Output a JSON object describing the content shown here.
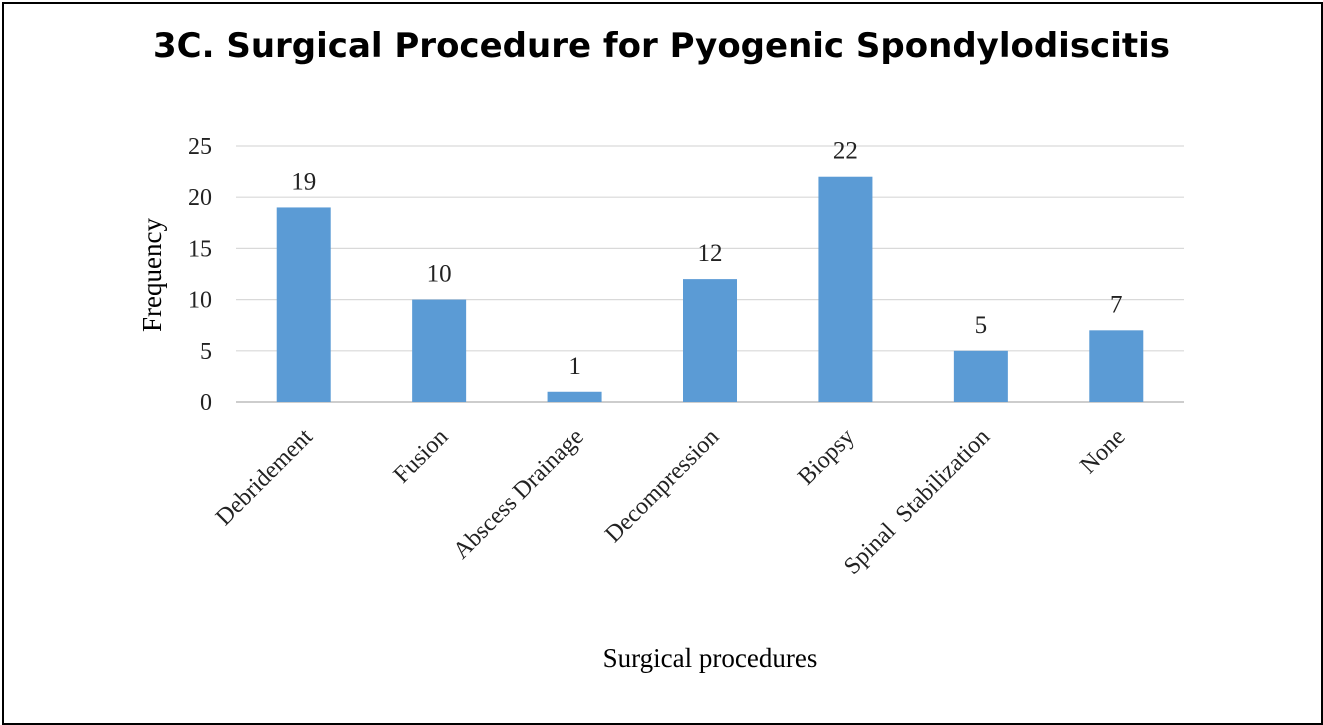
{
  "chart_data": {
    "type": "bar",
    "title": "3C. Surgical Procedure for Pyogenic Spondylodiscitis",
    "xlabel": "Surgical procedures",
    "ylabel": "Frequency",
    "categories": [
      "Debridement",
      "Fusion",
      "Abscess Drainage",
      "Decompression",
      "Biopsy",
      "Spinal  Stabilization",
      "None"
    ],
    "values": [
      19,
      10,
      1,
      12,
      22,
      5,
      7
    ],
    "data_labels": [
      "19",
      "10",
      "1",
      "12",
      "22",
      "5",
      "7"
    ],
    "yticks": [
      "0",
      "5",
      "10",
      "15",
      "20",
      "25"
    ],
    "ylim": [
      0,
      25
    ],
    "grid": true,
    "legend": "none",
    "bar_color": "#5b9bd5",
    "grid_color": "#d9d9d9"
  }
}
